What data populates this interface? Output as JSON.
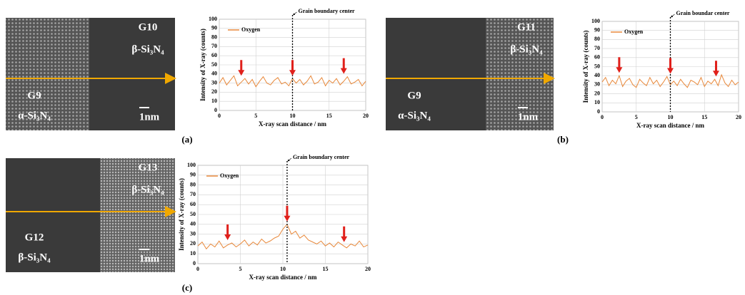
{
  "panels": [
    {
      "label": "(a)",
      "upper_grain": "G10",
      "upper_phase": "β-Si₃N₄",
      "lower_grain": "G9",
      "lower_phase": "α-Si₃N₄",
      "scale": "1nm"
    },
    {
      "label": "(b)",
      "upper_grain": "G11",
      "upper_phase": "β-Si₃N₄",
      "lower_grain": "G9",
      "lower_phase": "α-Si₃N₄",
      "scale": "1nm"
    },
    {
      "label": "(c)",
      "upper_grain": "G13",
      "upper_phase": "β-Si₃N₄",
      "lower_grain": "G12",
      "lower_phase": "β-Si₃N₄",
      "scale": "1nm"
    }
  ],
  "chart_data": [
    {
      "type": "line",
      "xlabel": "X-ray scan distance / nm",
      "ylabel": "Intensity of X-ray  (counts)",
      "annotation": "Grain boundary center",
      "boundary_x": 10,
      "arrows_x": [
        3,
        10,
        17
      ],
      "xlim": [
        0,
        20
      ],
      "ylim": [
        0,
        100
      ],
      "xticks": [
        0,
        5,
        10,
        15,
        20
      ],
      "yticks": [
        0,
        10,
        20,
        30,
        40,
        50,
        60,
        70,
        80,
        90,
        100
      ],
      "grid": true,
      "x": [
        0,
        0.5,
        1,
        1.5,
        2,
        2.5,
        3,
        3.5,
        4,
        4.5,
        5,
        5.5,
        6,
        6.5,
        7,
        7.5,
        8,
        8.5,
        9,
        9.5,
        10,
        10.5,
        11,
        11.5,
        12,
        12.5,
        13,
        13.5,
        14,
        14.5,
        15,
        15.5,
        16,
        16.5,
        17,
        17.5,
        18,
        18.5,
        19,
        19.5,
        20
      ],
      "series": [
        {
          "name": "Oxygen",
          "color": "#e8883a",
          "values": [
            30,
            36,
            28,
            33,
            38,
            27,
            31,
            35,
            29,
            34,
            26,
            32,
            37,
            30,
            28,
            33,
            36,
            29,
            31,
            27,
            35,
            30,
            34,
            28,
            32,
            38,
            29,
            31,
            36,
            27,
            33,
            30,
            35,
            28,
            32,
            37,
            29,
            31,
            34,
            27,
            32
          ]
        }
      ]
    },
    {
      "type": "line",
      "xlabel": "X-ray scan distance / nm",
      "ylabel": "Intensity of X-ray  (counts)",
      "annotation": "Grain boundar center",
      "boundary_x": 10,
      "arrows_x": [
        2.5,
        10,
        16.7
      ],
      "xlim": [
        0,
        20
      ],
      "ylim": [
        0,
        100
      ],
      "xticks": [
        0,
        5,
        10,
        15,
        20
      ],
      "yticks": [
        0,
        10,
        20,
        30,
        40,
        50,
        60,
        70,
        80,
        90,
        100
      ],
      "grid": true,
      "x": [
        0,
        0.5,
        1,
        1.5,
        2,
        2.5,
        3,
        3.5,
        4,
        4.5,
        5,
        5.5,
        6,
        6.5,
        7,
        7.5,
        8,
        8.5,
        9,
        9.5,
        10,
        10.5,
        11,
        11.5,
        12,
        12.5,
        13,
        13.5,
        14,
        14.5,
        15,
        15.5,
        16,
        16.5,
        17,
        17.5,
        18,
        18.5,
        19,
        19.5,
        20
      ],
      "series": [
        {
          "name": "Oxygen",
          "color": "#e8883a",
          "values": [
            33,
            38,
            29,
            35,
            31,
            40,
            28,
            34,
            37,
            30,
            27,
            36,
            32,
            29,
            38,
            31,
            35,
            28,
            33,
            39,
            30,
            34,
            29,
            36,
            31,
            27,
            35,
            33,
            30,
            38,
            28,
            34,
            31,
            36,
            29,
            41,
            32,
            28,
            35,
            30,
            33
          ]
        }
      ]
    },
    {
      "type": "line",
      "xlabel": "X-ray scan distance / nm",
      "ylabel": "Intensity of X-ray  (counts)",
      "annotation": "Grain boundary center",
      "boundary_x": 10.5,
      "arrows_x": [
        3.5,
        10.5,
        17.2
      ],
      "xlim": [
        0,
        20
      ],
      "ylim": [
        0,
        100
      ],
      "xticks": [
        0,
        5,
        10,
        15,
        20
      ],
      "yticks": [
        0,
        10,
        20,
        30,
        40,
        50,
        60,
        70,
        80,
        90,
        100
      ],
      "grid": true,
      "x": [
        0,
        0.5,
        1,
        1.5,
        2,
        2.5,
        3,
        3.5,
        4,
        4.5,
        5,
        5.5,
        6,
        6.5,
        7,
        7.5,
        8,
        8.5,
        9,
        9.5,
        10,
        10.5,
        11,
        11.5,
        12,
        12.5,
        13,
        13.5,
        14,
        14.5,
        15,
        15.5,
        16,
        16.5,
        17,
        17.5,
        18,
        18.5,
        19,
        19.5,
        20
      ],
      "series": [
        {
          "name": "Oxygen",
          "color": "#e8883a",
          "values": [
            18,
            22,
            15,
            20,
            17,
            23,
            16,
            19,
            21,
            17,
            20,
            24,
            18,
            22,
            19,
            25,
            21,
            23,
            26,
            28,
            35,
            40,
            30,
            33,
            26,
            29,
            24,
            22,
            20,
            23,
            18,
            21,
            17,
            22,
            19,
            16,
            20,
            18,
            23,
            17,
            19
          ]
        }
      ]
    }
  ]
}
